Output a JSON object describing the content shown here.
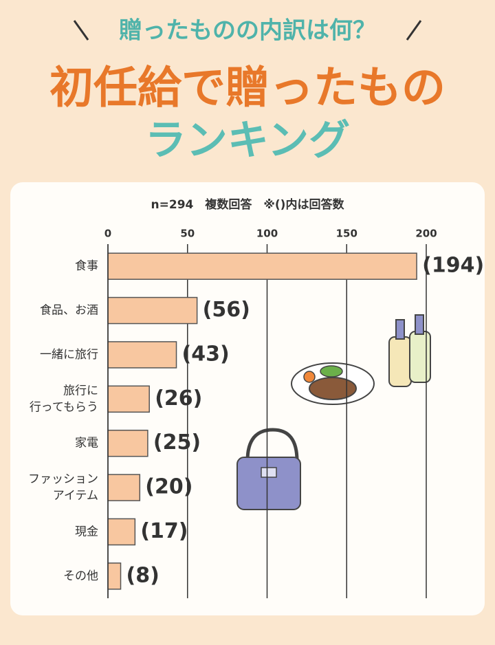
{
  "chart_data": {
    "type": "bar",
    "orientation": "horizontal",
    "subtitle": "贈ったものの内訳は何？",
    "title": "初任給で贈ったもの",
    "title2": "ランキング",
    "note": "n=294　複数回答　※()内は回答数",
    "categories": [
      "食事",
      "食品、お酒",
      "一緒に旅行",
      "旅行に\n行ってもらう",
      "家電",
      "ファッション\nアイテム",
      "現金",
      "その他"
    ],
    "values": [
      194,
      56,
      43,
      26,
      25,
      20,
      17,
      8
    ],
    "value_labels": [
      "(194)",
      "(56)",
      "(43)",
      "(26)",
      "(25)",
      "(20)",
      "(17)",
      "(8)"
    ],
    "color": "#f8c7a0",
    "xlim": [
      0,
      200
    ],
    "xticks": [
      0,
      50,
      100,
      150,
      200
    ],
    "grid": true
  }
}
